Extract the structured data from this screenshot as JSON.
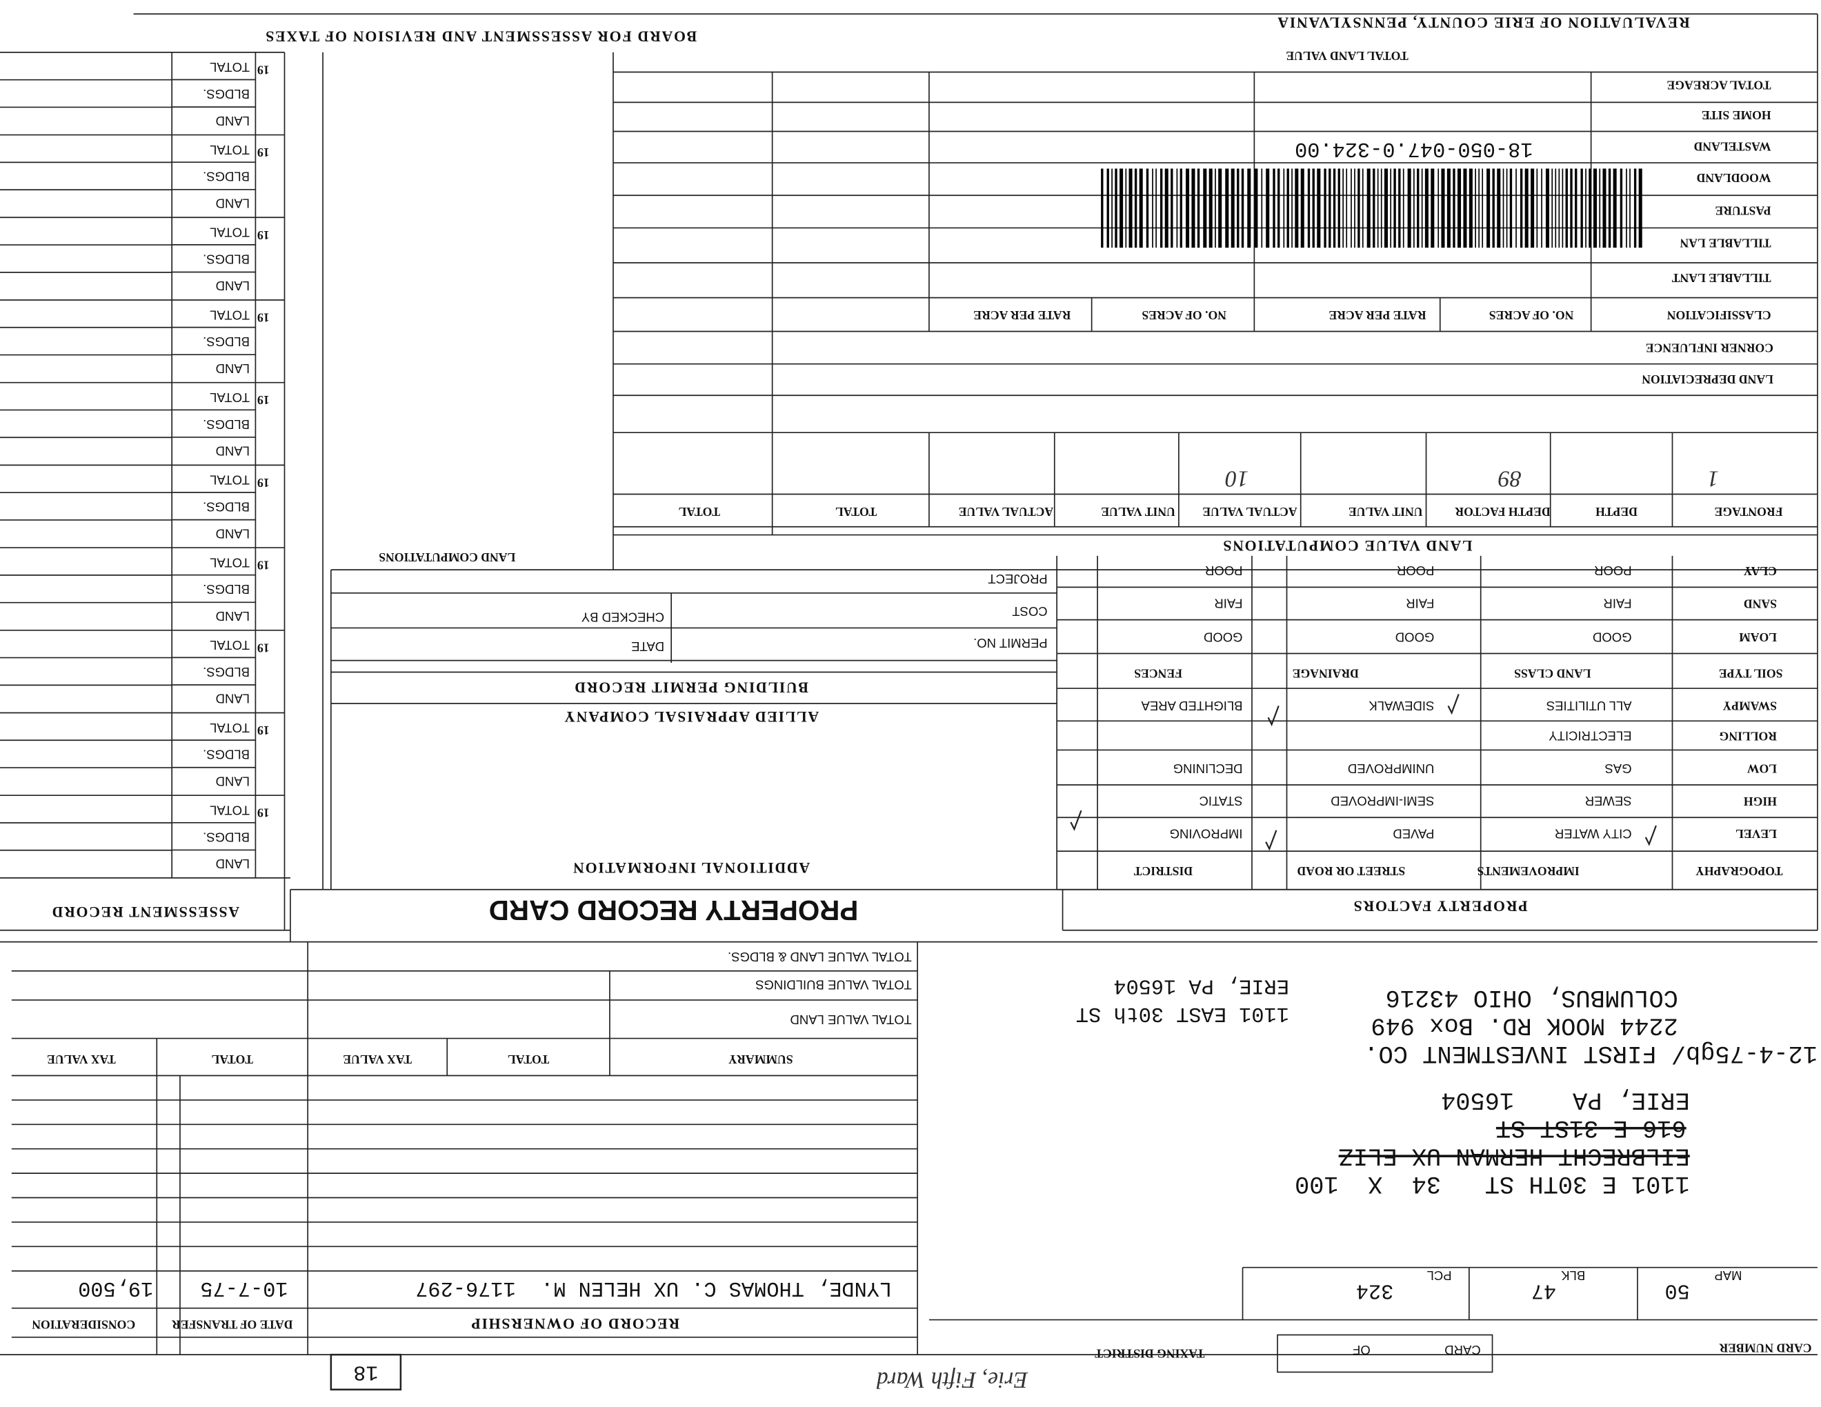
{
  "header": {
    "title": "REVALUATION OF ERIE COUNTY, PENNSYLVANIA",
    "board": "BOARD FOR ASSESSMENT AND REVISION OF TAXES"
  },
  "acreage": {
    "total_land_value": "TOTAL LAND VALUE",
    "rows": [
      "TOTAL ACREAGE",
      "HOME SITE",
      "WASTELAND",
      "WOODLAND",
      "PASTURE",
      "TILLABLE LAN",
      "TILLABLE LANT"
    ],
    "header": [
      "CLASSIFICATION",
      "NO. OF ACRES",
      "RATE PER ACRE",
      "NO. OF ACRES",
      "RATE PER ACRE"
    ],
    "corner": "CORNER INFLUENCE",
    "depreciation": "LAND DEPRECIATION",
    "parcel_id": "18-050-047.0-324.00"
  },
  "land_value": {
    "title": "LAND VALUE COMPUTATIONS",
    "columns": [
      "FRONTAGE",
      "DEPTH",
      "DEPTH FACTOR",
      "UNIT VALUE",
      "ACTUAL VALUE",
      "UNIT VALUE",
      "ACTUAL VALUE",
      "TOTAL",
      "TOTAL"
    ],
    "entries": [
      "1",
      "89",
      "10"
    ]
  },
  "land_computations": "LAND COMPUTATIONS",
  "soil": {
    "headers": [
      "SOIL TYPE",
      "LAND CLASS",
      "DRAINAGE",
      "FENCES"
    ],
    "rows": [
      [
        "CLAY",
        "POOR",
        "POOR",
        "POOR"
      ],
      [
        "SAND",
        "FAIR",
        "FAIR",
        "FAIR"
      ],
      [
        "LOAM",
        "GOOD",
        "GOOD",
        "GOOD"
      ]
    ]
  },
  "permit": {
    "title": "BUILDING PERMIT RECORD",
    "fields": [
      "PROJECT",
      "COST",
      "PERMIT NO."
    ],
    "checked_by": "CHECKED BY",
    "date": "DATE"
  },
  "appraiser": "ALLIED APPRAISAL COMPANY",
  "additional": "ADDITIONAL INFORMATION",
  "card_title": "PROPERTY RECORD CARD",
  "factors": {
    "title": "PROPERTY FACTORS",
    "headers": [
      "TOPOGRAPHY",
      "IMPROVEMENTS",
      "STREET OR ROAD",
      "DISTRICT"
    ],
    "rows": [
      [
        "SWAMPY",
        "ALL UTILITIES",
        "SIDEWALK",
        "BLIGHTED AREA"
      ],
      [
        "ROLLING",
        "ELECTRICITY",
        null,
        null
      ],
      [
        "LOW",
        "GAS",
        "UNIMPROVED",
        "DECLINING"
      ],
      [
        "HIGH",
        "SEWER",
        "SEMI-IMPROVED",
        "STATIC"
      ],
      [
        "LEVEL",
        "CITY WATER",
        "PAVED",
        "IMPROVING"
      ]
    ]
  },
  "assessment": {
    "title": "ASSESSMENT RECORD",
    "groups": [
      {
        "year": "19",
        "rows": [
          "TOTAL",
          "BLDGS.",
          "LAND"
        ]
      },
      {
        "year": "19",
        "rows": [
          "TOTAL",
          "BLDGS.",
          "LAND"
        ]
      },
      {
        "year": "19",
        "rows": [
          "TOTAL",
          "BLDGS.",
          "LAND"
        ]
      },
      {
        "year": "19",
        "rows": [
          "TOTAL",
          "BLDGS.",
          "LAND"
        ]
      },
      {
        "year": "19",
        "rows": [
          "TOTAL",
          "BLDGS.",
          "LAND"
        ]
      },
      {
        "year": "19",
        "rows": [
          "TOTAL",
          "BLDGS.",
          "LAND"
        ]
      },
      {
        "year": "19",
        "rows": [
          "TOTAL",
          "BLDGS.",
          "LAND"
        ]
      },
      {
        "year": "19",
        "rows": [
          "TOTAL",
          "BLDGS.",
          "LAND"
        ]
      },
      {
        "year": "19",
        "rows": [
          "TOTAL",
          "BLDGS.",
          "LAND"
        ]
      },
      {
        "year": "19",
        "rows": [
          "TOTAL",
          "BLDGS.",
          "LAND"
        ]
      }
    ]
  },
  "summary": {
    "rows": [
      "TOTAL VALUE LAND & BLDGS.",
      "TOTAL VALUE BUILDINGS",
      "TOTAL VALUE LAND"
    ],
    "headers": [
      "SUMMARY",
      "TOTAL",
      "TAX VALUE",
      "TOTAL",
      "TAX VALUE"
    ]
  },
  "ownership": {
    "title": "RECORD OF OWNERSHIP",
    "date_header": "DATE OF TRANSFER",
    "consideration_header": "CONSIDERATION",
    "entries": [
      {
        "owner": "LYNDE, THOMAS C. UX HELEN M.  1176-297",
        "date": "10-7-75",
        "consideration": "19,500"
      }
    ]
  },
  "parcel": {
    "map_label": "MAP",
    "map": "50",
    "blk_label": "BLK",
    "blk": "47",
    "pcl_label": "PCL",
    "pcl": "324"
  },
  "address": {
    "lines": [
      {
        "text": "1101 E 30TH ST   34  X  100",
        "struck": false
      },
      {
        "text": "EILBRECHT HERMAN UX ELIZ",
        "struck": true
      },
      {
        "text": "616 E 31ST ST",
        "struck": true
      },
      {
        "text": "ERIE, PA    16504",
        "struck": false
      },
      {
        "text": "12-4-75gb/ FIRST INVESTMENT CO.",
        "struck": false
      },
      {
        "text": "2244 MOOK RD. Box 949",
        "struck": false
      },
      {
        "text": "COLUMBUS, OHIO 43216",
        "struck": false
      }
    ],
    "property_lines": [
      "1101 EAST 30th ST",
      "ERIE, PA 16504"
    ]
  },
  "footer": {
    "card_number": "CARD NUMBER",
    "card": "CARD",
    "of": "OF",
    "taxing_district": "TAXING DISTRICT",
    "district": "Erie, Fifth Ward",
    "sheet": "18"
  }
}
